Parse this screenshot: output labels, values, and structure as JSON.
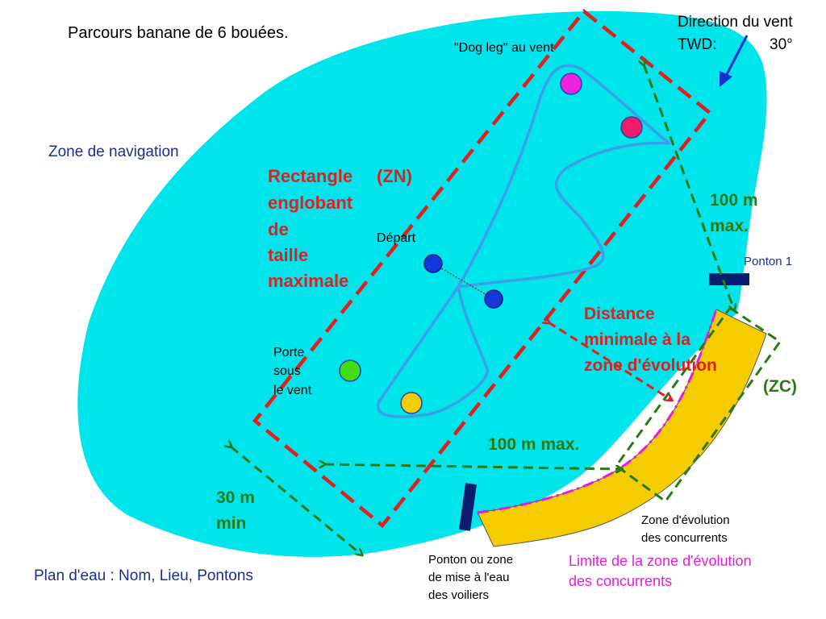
{
  "title": "Parcours banane de 6 bouées.",
  "wind": {
    "heading": "Direction du vent",
    "label": "TWD:",
    "value": "30°"
  },
  "zone_navigation": "Zone de navigation",
  "rectangle": {
    "line1": "Rectangle",
    "tag": "(ZN)",
    "line2": "englobant",
    "line3": "de",
    "line4": "taille",
    "line5": "maximale"
  },
  "dogleg": "\"Dog leg\" au vent",
  "depart": "Départ",
  "porte": {
    "line1": "Porte",
    "line2": "sous",
    "line3": "le vent"
  },
  "max100_right": {
    "line1": "100 m",
    "line2": "max."
  },
  "max100_bottom": "100 m max.",
  "min30": {
    "line1": "30 m",
    "line2": "min"
  },
  "ponton1": "Ponton 1",
  "distance_min": {
    "line1": "Distance",
    "line2": "minimale à la",
    "line3": "zone d'évolution"
  },
  "zc": "(ZC)",
  "zone_evolution": {
    "line1": "Zone d'évolution",
    "line2": "des concurrents"
  },
  "limite": {
    "line1": "Limite de la zone d'évolution",
    "line2": "des concurrents"
  },
  "ponton_mise": {
    "line1": "Ponton ou zone",
    "line2": "de mise à l'eau",
    "line3": "des voiliers"
  },
  "plan_eau": "Plan d'eau : Nom, Lieu, Pontons",
  "colors": {
    "water": "#00e5ec",
    "red_dashed": "#e0201e",
    "green_dashed": "#2a7a12",
    "course": "#3aa0e8",
    "yellow_zone": "#f5cc00",
    "magenta_limit": "#e81ae0",
    "pontoon": "#0a1d6e",
    "wind_arrow": "#1030d0",
    "buoy_magenta": "#f020e0",
    "buoy_pink": "#f01a6a",
    "buoy_blue": "#1438e0",
    "buoy_green": "#40e010",
    "buoy_yellow": "#f5cc00"
  }
}
